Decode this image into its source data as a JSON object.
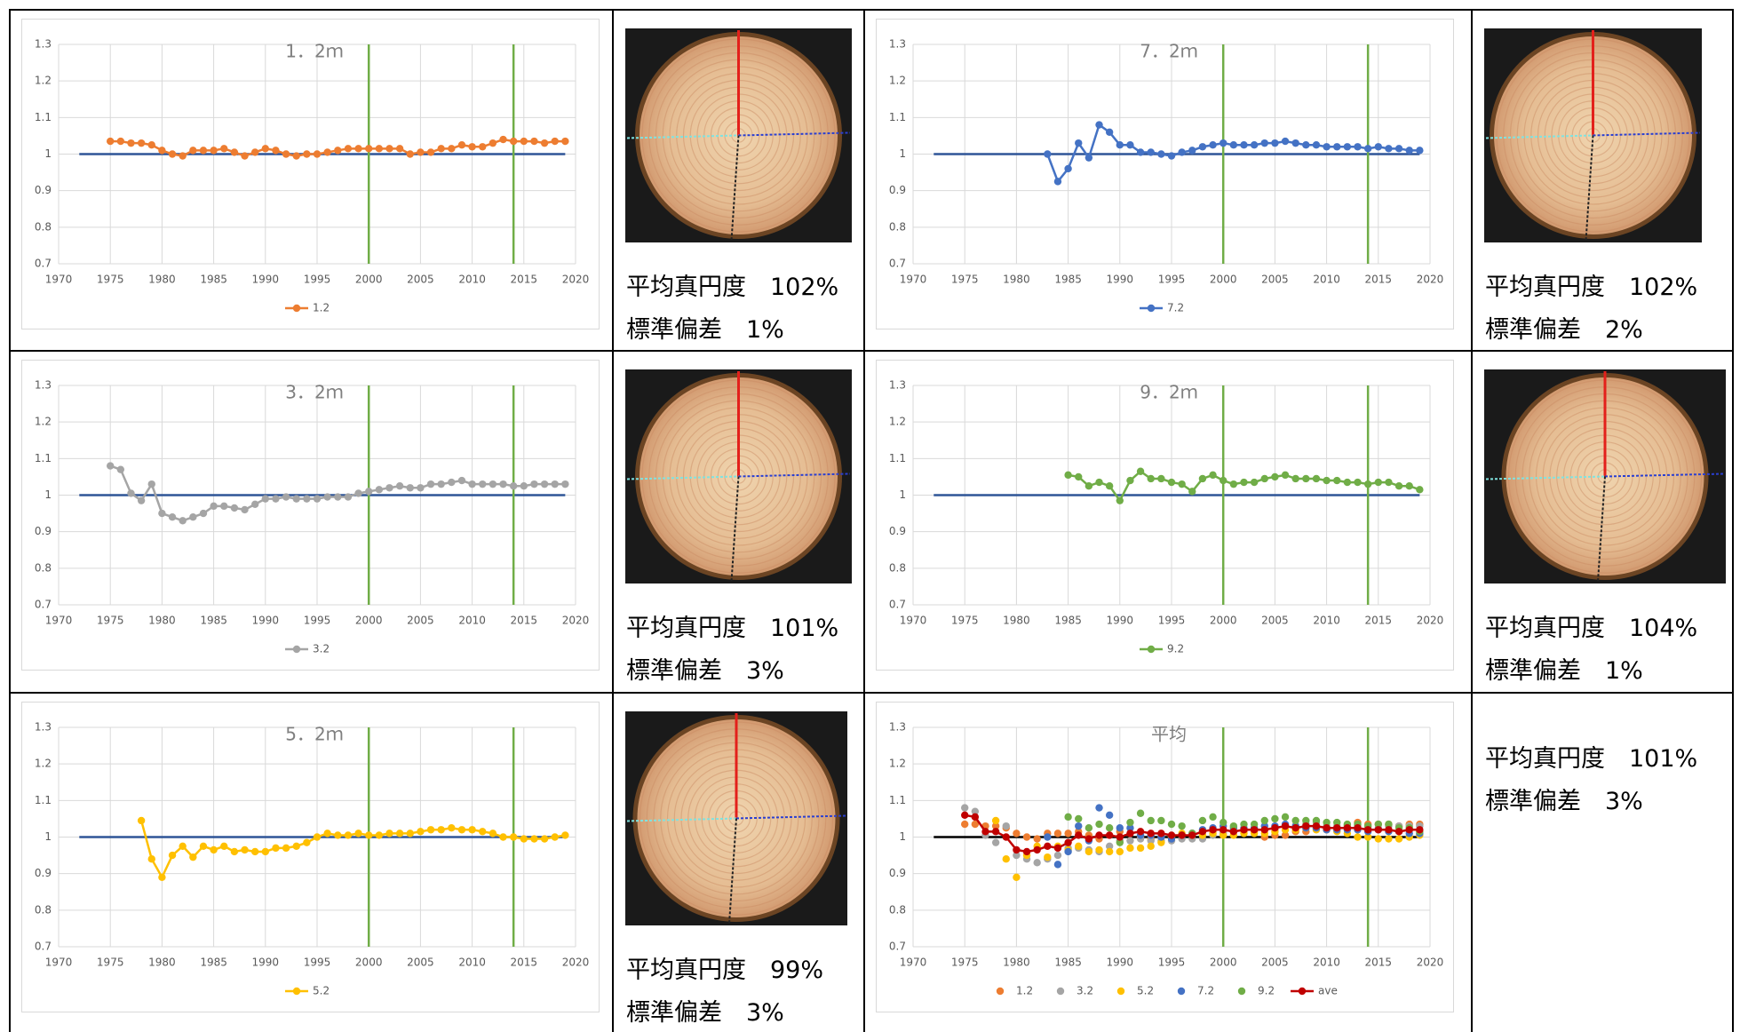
{
  "chart_data": [
    {
      "type": "line",
      "title": "1．2ｍ",
      "x": [
        1975,
        1976,
        1977,
        1978,
        1979,
        1980,
        1981,
        1982,
        1983,
        1984,
        1985,
        1986,
        1987,
        1988,
        1989,
        1990,
        1991,
        1992,
        1993,
        1994,
        1995,
        1996,
        1997,
        1998,
        1999,
        2000,
        2001,
        2002,
        2003,
        2004,
        2005,
        2006,
        2007,
        2008,
        2009,
        2010,
        2011,
        2012,
        2013,
        2014,
        2015,
        2016,
        2017,
        2018,
        2019
      ],
      "series": [
        {
          "name": "1.2",
          "color": "#ed7d31",
          "values": [
            1.035,
            1.035,
            1.03,
            1.03,
            1.025,
            1.01,
            1.0,
            0.995,
            1.01,
            1.01,
            1.01,
            1.015,
            1.005,
            0.995,
            1.005,
            1.015,
            1.01,
            1.0,
            0.995,
            1.0,
            1.0,
            1.005,
            1.01,
            1.015,
            1.015,
            1.015,
            1.015,
            1.015,
            1.015,
            1.0,
            1.005,
            1.005,
            1.015,
            1.015,
            1.025,
            1.02,
            1.02,
            1.03,
            1.04,
            1.035,
            1.035,
            1.035,
            1.03,
            1.035,
            1.035
          ]
        }
      ],
      "xlim": [
        1970,
        2020
      ],
      "xticks": [
        1970,
        1975,
        1980,
        1985,
        1990,
        1995,
        2000,
        2005,
        2010,
        2015,
        2020
      ],
      "ylim": [
        0.7,
        1.3
      ],
      "yticks": [
        0.7,
        0.8,
        0.9,
        1,
        1.1,
        1.2,
        1.3
      ],
      "grid": true,
      "reference_line": 1,
      "reference_color": "#2f5597",
      "vlines": [
        2000,
        2014
      ],
      "vline_color": "#70ad47",
      "legend": "bottom"
    },
    {
      "type": "line",
      "title": "7．2ｍ",
      "x": [
        1983,
        1984,
        1985,
        1986,
        1987,
        1988,
        1989,
        1990,
        1991,
        1992,
        1993,
        1994,
        1995,
        1996,
        1997,
        1998,
        1999,
        2000,
        2001,
        2002,
        2003,
        2004,
        2005,
        2006,
        2007,
        2008,
        2009,
        2010,
        2011,
        2012,
        2013,
        2014,
        2015,
        2016,
        2017,
        2018,
        2019
      ],
      "series": [
        {
          "name": "7.2",
          "color": "#4472c4",
          "values": [
            1.0,
            0.925,
            0.96,
            1.03,
            0.99,
            1.08,
            1.06,
            1.025,
            1.025,
            1.005,
            1.005,
            1.0,
            0.995,
            1.005,
            1.01,
            1.02,
            1.025,
            1.03,
            1.025,
            1.025,
            1.025,
            1.03,
            1.03,
            1.035,
            1.03,
            1.025,
            1.025,
            1.02,
            1.02,
            1.02,
            1.02,
            1.015,
            1.02,
            1.015,
            1.015,
            1.01,
            1.01
          ]
        }
      ],
      "xlim": [
        1970,
        2020
      ],
      "xticks": [
        1970,
        1975,
        1980,
        1985,
        1990,
        1995,
        2000,
        2005,
        2010,
        2015,
        2020
      ],
      "ylim": [
        0.7,
        1.3
      ],
      "yticks": [
        0.7,
        0.8,
        0.9,
        1,
        1.1,
        1.2,
        1.3
      ],
      "grid": true,
      "reference_line": 1,
      "reference_color": "#2f5597",
      "vlines": [
        2000,
        2014
      ],
      "vline_color": "#70ad47",
      "legend": "bottom"
    },
    {
      "type": "line",
      "title": "3．2ｍ",
      "x": [
        1975,
        1976,
        1977,
        1978,
        1979,
        1980,
        1981,
        1982,
        1983,
        1984,
        1985,
        1986,
        1987,
        1988,
        1989,
        1990,
        1991,
        1992,
        1993,
        1994,
        1995,
        1996,
        1997,
        1998,
        1999,
        2000,
        2001,
        2002,
        2003,
        2004,
        2005,
        2006,
        2007,
        2008,
        2009,
        2010,
        2011,
        2012,
        2013,
        2014,
        2015,
        2016,
        2017,
        2018,
        2019
      ],
      "series": [
        {
          "name": "3.2",
          "color": "#a5a5a5",
          "values": [
            1.08,
            1.07,
            1.005,
            0.985,
            1.03,
            0.95,
            0.94,
            0.93,
            0.94,
            0.95,
            0.97,
            0.97,
            0.965,
            0.96,
            0.975,
            0.99,
            0.99,
            0.995,
            0.99,
            0.99,
            0.99,
            0.995,
            0.995,
            0.995,
            1.005,
            1.01,
            1.015,
            1.02,
            1.025,
            1.02,
            1.02,
            1.03,
            1.03,
            1.035,
            1.04,
            1.03,
            1.03,
            1.03,
            1.03,
            1.025,
            1.025,
            1.03,
            1.03,
            1.03,
            1.03
          ]
        }
      ],
      "xlim": [
        1970,
        2020
      ],
      "xticks": [
        1970,
        1975,
        1980,
        1985,
        1990,
        1995,
        2000,
        2005,
        2010,
        2015,
        2020
      ],
      "ylim": [
        0.7,
        1.3
      ],
      "yticks": [
        0.7,
        0.8,
        0.9,
        1,
        1.1,
        1.2,
        1.3
      ],
      "grid": true,
      "reference_line": 1,
      "reference_color": "#2f5597",
      "vlines": [
        2000,
        2014
      ],
      "vline_color": "#70ad47",
      "legend": "bottom"
    },
    {
      "type": "line",
      "title": "9．2ｍ",
      "x": [
        1985,
        1986,
        1987,
        1988,
        1989,
        1990,
        1991,
        1992,
        1993,
        1994,
        1995,
        1996,
        1997,
        1998,
        1999,
        2000,
        2001,
        2002,
        2003,
        2004,
        2005,
        2006,
        2007,
        2008,
        2009,
        2010,
        2011,
        2012,
        2013,
        2014,
        2015,
        2016,
        2017,
        2018,
        2019
      ],
      "series": [
        {
          "name": "9.2",
          "color": "#70ad47",
          "values": [
            1.055,
            1.05,
            1.025,
            1.035,
            1.025,
            0.985,
            1.04,
            1.065,
            1.045,
            1.045,
            1.035,
            1.03,
            1.01,
            1.045,
            1.055,
            1.04,
            1.03,
            1.035,
            1.035,
            1.045,
            1.05,
            1.055,
            1.045,
            1.045,
            1.045,
            1.04,
            1.04,
            1.035,
            1.035,
            1.03,
            1.035,
            1.035,
            1.025,
            1.025,
            1.015
          ]
        }
      ],
      "xlim": [
        1970,
        2020
      ],
      "xticks": [
        1970,
        1975,
        1980,
        1985,
        1990,
        1995,
        2000,
        2005,
        2010,
        2015,
        2020
      ],
      "ylim": [
        0.7,
        1.3
      ],
      "yticks": [
        0.7,
        0.8,
        0.9,
        1,
        1.1,
        1.2,
        1.3
      ],
      "grid": true,
      "reference_line": 1,
      "reference_color": "#2f5597",
      "vlines": [
        2000,
        2014
      ],
      "vline_color": "#70ad47",
      "legend": "bottom"
    },
    {
      "type": "line",
      "title": "5．2ｍ",
      "x": [
        1978,
        1979,
        1980,
        1981,
        1982,
        1983,
        1984,
        1985,
        1986,
        1987,
        1988,
        1989,
        1990,
        1991,
        1992,
        1993,
        1994,
        1995,
        1996,
        1997,
        1998,
        1999,
        2000,
        2001,
        2002,
        2003,
        2004,
        2005,
        2006,
        2007,
        2008,
        2009,
        2010,
        2011,
        2012,
        2013,
        2014,
        2015,
        2016,
        2017,
        2018,
        2019
      ],
      "series": [
        {
          "name": "5.2",
          "color": "#ffc000",
          "values": [
            1.045,
            0.94,
            0.89,
            0.95,
            0.975,
            0.945,
            0.975,
            0.965,
            0.975,
            0.96,
            0.965,
            0.96,
            0.96,
            0.97,
            0.97,
            0.975,
            0.985,
            1.0,
            1.01,
            1.005,
            1.005,
            1.01,
            1.005,
            1.005,
            1.01,
            1.01,
            1.01,
            1.015,
            1.02,
            1.02,
            1.025,
            1.02,
            1.02,
            1.015,
            1.01,
            1.0,
            1.0,
            0.995,
            0.995,
            0.995,
            1.0,
            1.005
          ]
        }
      ],
      "xlim": [
        1970,
        2020
      ],
      "xticks": [
        1970,
        1975,
        1980,
        1985,
        1990,
        1995,
        2000,
        2005,
        2010,
        2015,
        2020
      ],
      "ylim": [
        0.7,
        1.3
      ],
      "yticks": [
        0.7,
        0.8,
        0.9,
        1,
        1.1,
        1.2,
        1.3
      ],
      "grid": true,
      "reference_line": 1,
      "reference_color": "#2f5597",
      "vlines": [
        2000,
        2014
      ],
      "vline_color": "#70ad47",
      "legend": "bottom"
    },
    {
      "type": "line",
      "title": "平均",
      "x": [
        1975,
        1976,
        1977,
        1978,
        1979,
        1980,
        1981,
        1982,
        1983,
        1984,
        1985,
        1986,
        1987,
        1988,
        1989,
        1990,
        1991,
        1992,
        1993,
        1994,
        1995,
        1996,
        1997,
        1998,
        1999,
        2000,
        2001,
        2002,
        2003,
        2004,
        2005,
        2006,
        2007,
        2008,
        2009,
        2010,
        2011,
        2012,
        2013,
        2014,
        2015,
        2016,
        2017,
        2018,
        2019
      ],
      "series": [
        {
          "name": "1.2",
          "color": "#ed7d31",
          "line": false,
          "values": [
            1.035,
            1.035,
            1.03,
            1.03,
            1.025,
            1.01,
            1.0,
            0.995,
            1.01,
            1.01,
            1.01,
            1.015,
            1.005,
            0.995,
            1.005,
            1.015,
            1.01,
            1.0,
            0.995,
            1.0,
            1.0,
            1.005,
            1.01,
            1.015,
            1.015,
            1.015,
            1.015,
            1.015,
            1.015,
            1.0,
            1.005,
            1.005,
            1.015,
            1.015,
            1.025,
            1.02,
            1.02,
            1.03,
            1.04,
            1.035,
            1.035,
            1.035,
            1.03,
            1.035,
            1.035
          ]
        },
        {
          "name": "3.2",
          "color": "#a5a5a5",
          "line": false,
          "values": [
            1.08,
            1.07,
            1.005,
            0.985,
            1.03,
            0.95,
            0.94,
            0.93,
            0.94,
            0.95,
            0.97,
            0.97,
            0.965,
            0.96,
            0.975,
            0.99,
            0.99,
            0.995,
            0.99,
            0.99,
            0.99,
            0.995,
            0.995,
            0.995,
            1.005,
            1.01,
            1.015,
            1.02,
            1.025,
            1.02,
            1.02,
            1.03,
            1.03,
            1.035,
            1.04,
            1.03,
            1.03,
            1.03,
            1.03,
            1.025,
            1.025,
            1.03,
            1.03,
            1.03,
            1.03
          ]
        },
        {
          "name": "5.2",
          "color": "#ffc000",
          "line": false,
          "values": [
            null,
            null,
            null,
            1.045,
            0.94,
            0.89,
            0.95,
            0.975,
            0.945,
            0.975,
            0.965,
            0.975,
            0.96,
            0.965,
            0.96,
            0.96,
            0.97,
            0.97,
            0.975,
            0.985,
            1.0,
            1.01,
            1.005,
            1.005,
            1.01,
            1.005,
            1.005,
            1.01,
            1.01,
            1.01,
            1.015,
            1.02,
            1.02,
            1.025,
            1.02,
            1.02,
            1.015,
            1.01,
            1.0,
            1.0,
            0.995,
            0.995,
            0.995,
            1.0,
            1.005
          ]
        },
        {
          "name": "7.2",
          "color": "#4472c4",
          "line": false,
          "values": [
            null,
            null,
            null,
            null,
            null,
            null,
            null,
            null,
            1.0,
            0.925,
            0.96,
            1.03,
            0.99,
            1.08,
            1.06,
            1.025,
            1.025,
            1.005,
            1.005,
            1.0,
            0.995,
            1.005,
            1.01,
            1.02,
            1.025,
            1.03,
            1.025,
            1.025,
            1.025,
            1.03,
            1.03,
            1.035,
            1.03,
            1.025,
            1.025,
            1.02,
            1.02,
            1.02,
            1.02,
            1.015,
            1.02,
            1.015,
            1.015,
            1.01,
            1.01
          ]
        },
        {
          "name": "9.2",
          "color": "#70ad47",
          "line": false,
          "values": [
            null,
            null,
            null,
            null,
            null,
            null,
            null,
            null,
            null,
            null,
            1.055,
            1.05,
            1.025,
            1.035,
            1.025,
            0.985,
            1.04,
            1.065,
            1.045,
            1.045,
            1.035,
            1.03,
            1.01,
            1.045,
            1.055,
            1.04,
            1.03,
            1.035,
            1.035,
            1.045,
            1.05,
            1.055,
            1.045,
            1.045,
            1.045,
            1.04,
            1.04,
            1.035,
            1.035,
            1.03,
            1.035,
            1.035,
            1.025,
            1.025,
            1.015
          ]
        },
        {
          "name": "ave",
          "color": "#c00000",
          "values": [
            1.06,
            1.055,
            1.015,
            1.015,
            1.0,
            0.965,
            0.96,
            0.965,
            0.975,
            0.97,
            0.985,
            1.005,
            0.995,
            1.005,
            1.005,
            1.0,
            1.01,
            1.015,
            1.01,
            1.01,
            1.005,
            1.005,
            1.005,
            1.015,
            1.02,
            1.02,
            1.015,
            1.02,
            1.02,
            1.02,
            1.025,
            1.03,
            1.025,
            1.03,
            1.03,
            1.025,
            1.025,
            1.025,
            1.025,
            1.02,
            1.02,
            1.02,
            1.015,
            1.02,
            1.02
          ]
        }
      ],
      "xlim": [
        1970,
        2020
      ],
      "xticks": [
        1970,
        1975,
        1980,
        1985,
        1990,
        1995,
        2000,
        2005,
        2010,
        2015,
        2020
      ],
      "ylim": [
        0.7,
        1.3
      ],
      "yticks": [
        0.7,
        0.8,
        0.9,
        1,
        1.1,
        1.2,
        1.3
      ],
      "grid": true,
      "reference_line": 1,
      "reference_color": "#000000",
      "vlines": [
        2000,
        2014
      ],
      "vline_color": "#70ad47",
      "legend": "bottom"
    }
  ],
  "stats": [
    [
      "平均真円度　102%",
      "標準偏差　1%"
    ],
    [
      "平均真円度　102%",
      "標準偏差　2%"
    ],
    [
      "平均真円度　101%",
      "標準偏差　3%"
    ],
    [
      "平均真円度　104%",
      "標準偏差　1%"
    ],
    [
      "平均真円度　99%",
      "標準偏差　3%"
    ],
    [
      "平均真円度　101%",
      "標準偏差　3%"
    ]
  ]
}
